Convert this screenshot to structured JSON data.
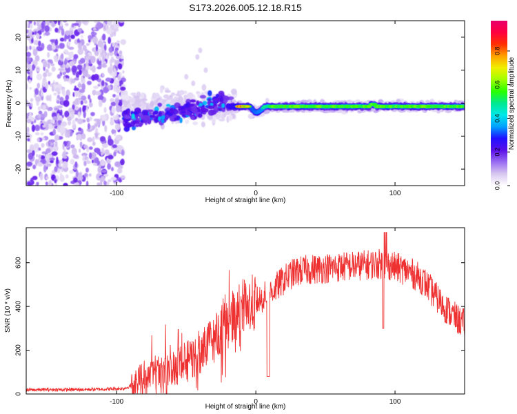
{
  "title": "S173.2026.005.12.18.R15",
  "chart_data": [
    {
      "type": "heatmap",
      "title": "S173.2026.005.12.18.R15",
      "xlabel": "Height of straight line (km)",
      "ylabel": "Frequency (Hz)",
      "xlim": [
        -165,
        150
      ],
      "ylim": [
        -25,
        25
      ],
      "xticks": [
        -100,
        0,
        100
      ],
      "yticks": [
        20,
        10,
        0,
        -10,
        -20
      ],
      "colorbar": {
        "label": "Normalized spectral amplitude",
        "range": [
          0.0,
          0.98
        ],
        "ticks": [
          "0.0",
          "0.2",
          "0.4",
          "0.6",
          "0.8"
        ],
        "colormap": [
          "#ffffff",
          "#d8c8f0",
          "#9a6cf2",
          "#5a10e8",
          "#2010ff",
          "#00a0ff",
          "#00e8e8",
          "#00e890",
          "#28ff00",
          "#a0ff00",
          "#f0f000",
          "#ffa000",
          "#ff3000",
          "#ff0040",
          "#e8006a"
        ]
      },
      "features": {
        "noise_region_km": [
          -165,
          -95
        ],
        "scattered_region_km": [
          -95,
          -20
        ],
        "signal_ridge_km": [
          -20,
          150
        ],
        "ridge_frequency_hz": -1,
        "ridge_peak_amplitude": 0.9
      }
    },
    {
      "type": "line",
      "xlabel": "Height of straight line (km)",
      "ylabel": "SNR (10 * v/v)",
      "xlim": [
        -165,
        150
      ],
      "ylim": [
        0,
        760
      ],
      "xticks": [
        -100,
        0,
        100
      ],
      "yticks": [
        0,
        200,
        400,
        600
      ],
      "color": "#ee3030",
      "series": [
        {
          "name": "SNR",
          "x": [
            -165,
            -150,
            -130,
            -110,
            -95,
            -88,
            -85,
            -80,
            -75,
            -70,
            -65,
            -60,
            -55,
            -50,
            -45,
            -40,
            -35,
            -30,
            -25,
            -20,
            -15,
            -10,
            -5,
            0,
            5,
            10,
            15,
            20,
            25,
            30,
            40,
            50,
            60,
            70,
            80,
            90,
            95,
            100,
            105,
            110,
            115,
            120,
            125,
            130,
            135,
            140,
            145,
            150
          ],
          "y": [
            18,
            20,
            20,
            22,
            25,
            40,
            80,
            90,
            95,
            100,
            110,
            120,
            130,
            145,
            165,
            190,
            220,
            255,
            300,
            330,
            365,
            395,
            400,
            420,
            440,
            460,
            490,
            520,
            545,
            560,
            570,
            575,
            580,
            585,
            590,
            595,
            590,
            580,
            570,
            560,
            540,
            520,
            480,
            440,
            400,
            370,
            340,
            320
          ]
        }
      ]
    }
  ]
}
